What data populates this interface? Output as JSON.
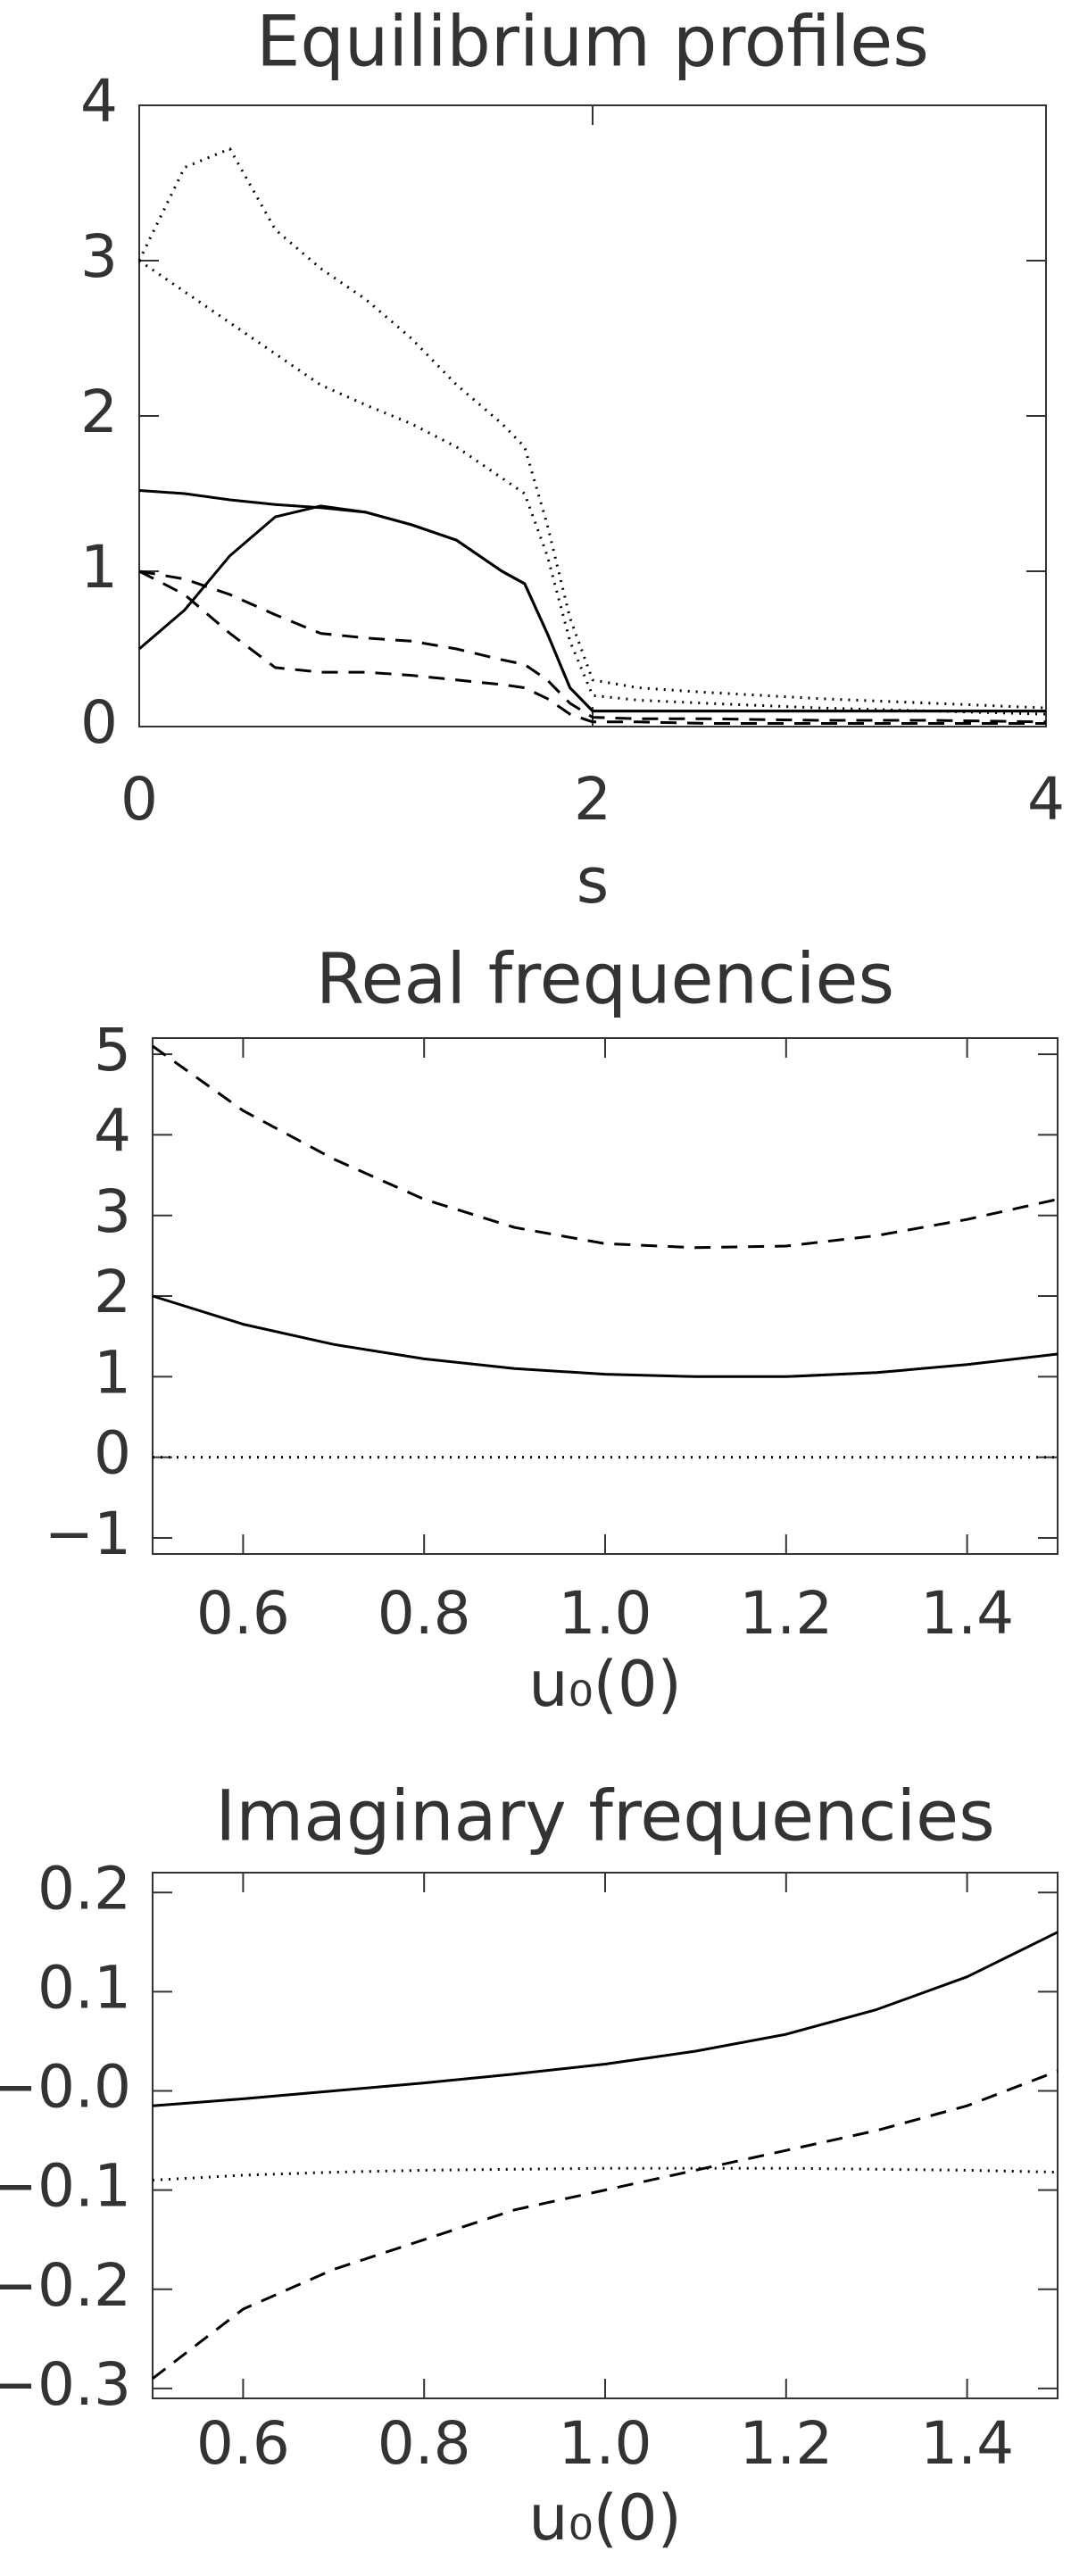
{
  "chart_data": [
    {
      "type": "line",
      "title": "Equilibrium profiles",
      "x_label": "s",
      "x": [
        0,
        0.2,
        0.4,
        0.6,
        0.8,
        1.0,
        1.2,
        1.4,
        1.6,
        1.7,
        1.8,
        1.9,
        2.0,
        2.2,
        2.5,
        3,
        3.5,
        4
      ],
      "xlim": [
        0,
        4
      ],
      "xticks": [
        0,
        2,
        4
      ],
      "ylim": [
        0,
        4
      ],
      "yticks": [
        0,
        1,
        2,
        3,
        4
      ],
      "series": [
        {
          "color": "#000000",
          "style": "dotted",
          "values": [
            3.0,
            3.6,
            3.72,
            3.2,
            2.95,
            2.75,
            2.5,
            2.2,
            1.95,
            1.8,
            1.3,
            0.7,
            0.3,
            0.25,
            0.22,
            0.18,
            0.15,
            0.12
          ]
        },
        {
          "color": "#000000",
          "style": "dotted",
          "values": [
            3.0,
            2.8,
            2.6,
            2.4,
            2.2,
            2.07,
            1.95,
            1.8,
            1.6,
            1.5,
            1.1,
            0.55,
            0.2,
            0.17,
            0.15,
            0.12,
            0.1,
            0.08
          ]
        },
        {
          "color": "#000000",
          "style": "solid",
          "values": [
            1.52,
            1.5,
            1.46,
            1.43,
            1.41,
            1.38,
            1.3,
            1.2,
            1.0,
            0.92,
            0.6,
            0.25,
            0.1,
            0.1,
            0.1,
            0.1,
            0.1,
            0.1
          ]
        },
        {
          "color": "#000000",
          "style": "solid",
          "values": [
            0.5,
            0.75,
            1.1,
            1.35,
            1.42,
            1.38,
            1.3,
            1.2,
            1.0,
            0.92,
            0.6,
            0.25,
            0.1,
            0.1,
            0.1,
            0.1,
            0.1,
            0.1
          ]
        },
        {
          "color": "#000000",
          "style": "dashed",
          "values": [
            1.0,
            0.95,
            0.85,
            0.72,
            0.6,
            0.57,
            0.55,
            0.5,
            0.43,
            0.4,
            0.3,
            0.15,
            0.06,
            0.05,
            0.05,
            0.04,
            0.04,
            0.03
          ]
        },
        {
          "color": "#000000",
          "style": "dashed",
          "values": [
            1.0,
            0.85,
            0.6,
            0.38,
            0.35,
            0.35,
            0.33,
            0.3,
            0.27,
            0.25,
            0.18,
            0.08,
            0.03,
            0.03,
            0.02,
            0.02,
            0.02,
            0.02
          ]
        }
      ]
    },
    {
      "type": "line",
      "title": "Real frequencies",
      "x_label": "u₀(0)",
      "x": [
        0.5,
        0.6,
        0.7,
        0.8,
        0.9,
        1.0,
        1.1,
        1.2,
        1.3,
        1.4,
        1.5
      ],
      "xlim": [
        0.5,
        1.5
      ],
      "xticks": [
        0.6,
        0.8,
        {
          "value": 1,
          "label": "1.0"
        },
        1.2,
        1.4
      ],
      "ylim": [
        -1.2,
        5.2
      ],
      "yticks": [
        {
          "value": -1,
          "label": "−1"
        },
        0,
        1,
        2,
        3,
        4,
        5
      ],
      "series": [
        {
          "color": "#000000",
          "style": "dashed",
          "values": [
            5.1,
            4.3,
            3.7,
            3.2,
            2.85,
            2.65,
            2.6,
            2.62,
            2.75,
            2.95,
            3.2
          ]
        },
        {
          "color": "#000000",
          "style": "solid",
          "values": [
            2.0,
            1.65,
            1.4,
            1.22,
            1.1,
            1.03,
            1.0,
            1.0,
            1.05,
            1.15,
            1.28
          ]
        },
        {
          "color": "#000000",
          "style": "dotted",
          "values": [
            0,
            0,
            0,
            0,
            0,
            0,
            0,
            0,
            0,
            0,
            0
          ]
        }
      ]
    },
    {
      "type": "line",
      "title": "Imaginary frequencies",
      "x_label": "u₀(0)",
      "x": [
        0.5,
        0.6,
        0.7,
        0.8,
        0.9,
        1.0,
        1.1,
        1.2,
        1.3,
        1.4,
        1.5
      ],
      "xlim": [
        0.5,
        1.5
      ],
      "xticks": [
        0.6,
        0.8,
        {
          "value": 1,
          "label": "1.0"
        },
        1.2,
        1.4
      ],
      "ylim": [
        -0.31,
        0.22
      ],
      "yticks": [
        {
          "value": -0.3,
          "label": "−0.3"
        },
        {
          "value": -0.2,
          "label": "−0.2"
        },
        {
          "value": -0.1,
          "label": "−0.1"
        },
        {
          "value": 0,
          "label": "−0.0"
        },
        0.1,
        0.2
      ],
      "series": [
        {
          "color": "#000000",
          "style": "solid",
          "values": [
            -0.015,
            -0.008,
            0.0,
            0.008,
            0.017,
            0.027,
            0.04,
            0.057,
            0.082,
            0.115,
            0.16
          ]
        },
        {
          "color": "#000000",
          "style": "dashed",
          "values": [
            -0.29,
            -0.22,
            -0.18,
            -0.15,
            -0.12,
            -0.1,
            -0.08,
            -0.06,
            -0.04,
            -0.015,
            0.02
          ]
        },
        {
          "color": "#000000",
          "style": "dotted",
          "values": [
            -0.09,
            -0.085,
            -0.082,
            -0.08,
            -0.079,
            -0.078,
            -0.078,
            -0.078,
            -0.079,
            -0.08,
            -0.082
          ]
        }
      ]
    }
  ]
}
